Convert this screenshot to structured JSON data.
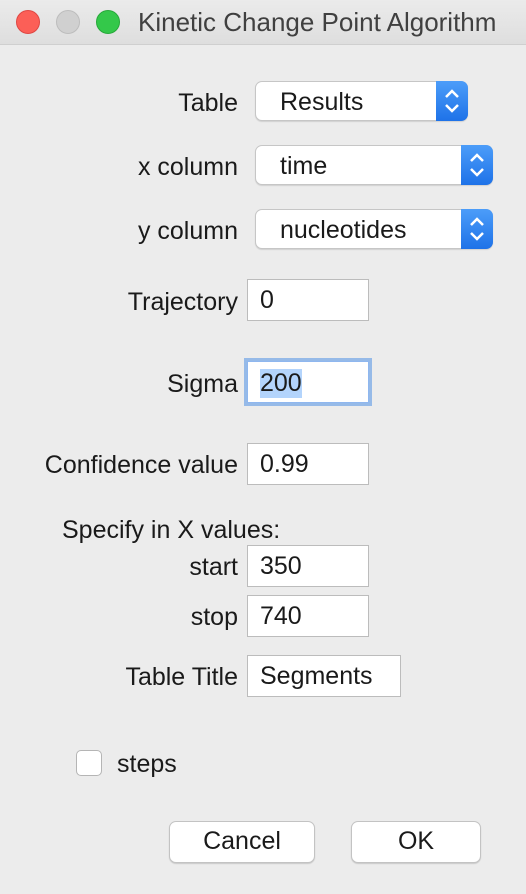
{
  "window": {
    "title": "Kinetic Change Point Algorithm"
  },
  "form": {
    "table_label": "Table",
    "table_value": "Results",
    "x_column_label": "x column",
    "x_column_value": "time",
    "y_column_label": "y column",
    "y_column_value": "nucleotides",
    "trajectory_label": "Trajectory",
    "trajectory_value": "0",
    "sigma_label": "Sigma",
    "sigma_value": "200",
    "confidence_label": "Confidence value",
    "confidence_value": "0.99",
    "specify_label": "Specify in X values:",
    "start_label": "start",
    "start_value": "350",
    "stop_label": "stop",
    "stop_value": "740",
    "table_title_label": "Table Title",
    "table_title_value": "Segments",
    "steps_label": "steps",
    "steps_checked": false
  },
  "buttons": {
    "cancel": "Cancel",
    "ok": "OK"
  },
  "colors": {
    "accent": "#1e72e8",
    "close": "#fc5f57",
    "maximize": "#34c84a",
    "selection": "#b3d4fc"
  }
}
